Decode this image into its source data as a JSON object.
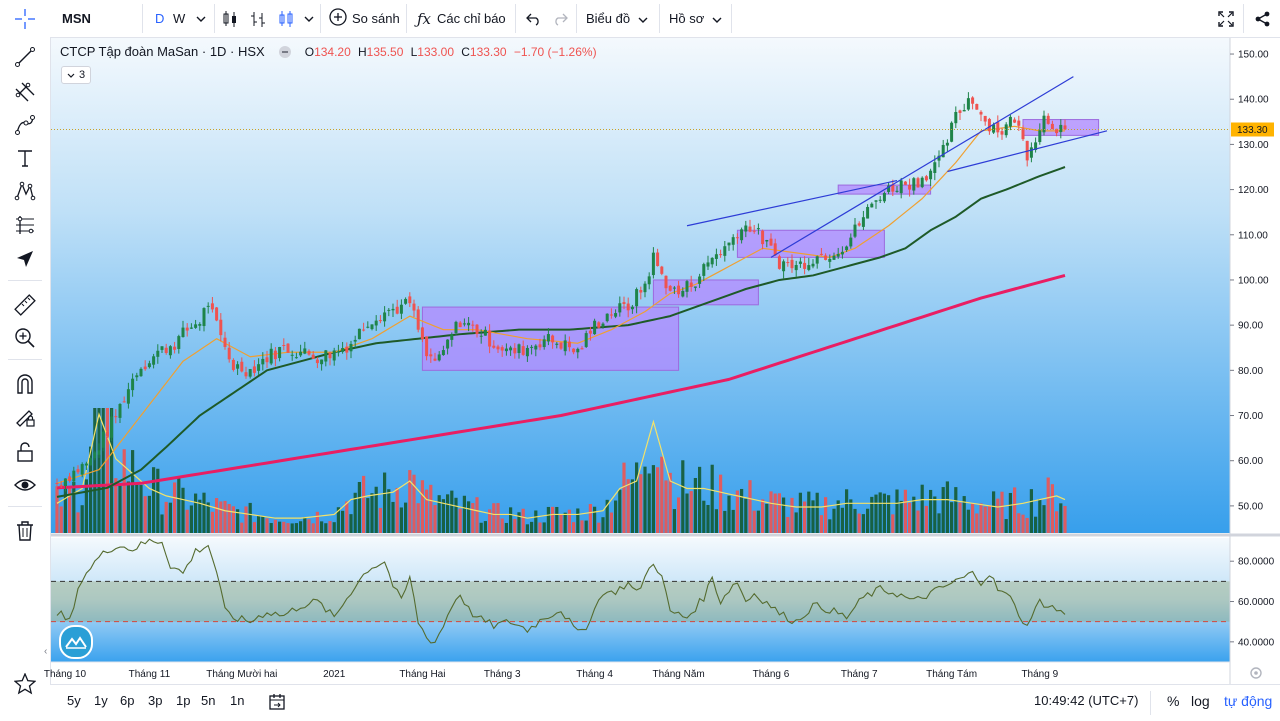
{
  "header": {
    "symbol": "MSN",
    "interval_day": "D",
    "interval_week": "W",
    "compare_label": "So sánh",
    "indicators_label": "Các chỉ báo",
    "chart_label": "Biểu đồ",
    "profile_label": "Hồ sơ"
  },
  "legend": {
    "title": "CTCP Tập đoàn MaSan · 1D · HSX",
    "o_label": "O",
    "o": "134.20",
    "h_label": "H",
    "h": "135.50",
    "l_label": "L",
    "l": "133.00",
    "c_label": "C",
    "c": "133.30",
    "change": "−1.70 (−1.26%)",
    "study_count": "3"
  },
  "bottom": {
    "ranges": [
      "5y",
      "1y",
      "6p",
      "3p",
      "1p",
      "5n",
      "1n"
    ],
    "time": "10:49:42 (UTC+7)",
    "percent_label": "%",
    "log_label": "log",
    "auto_label": "tự động"
  },
  "chart_data": {
    "type": "candlestick",
    "colors": {
      "up": "#1e8449",
      "down": "#ef5350",
      "volume_up": "#145a32",
      "volume_down": "#ef5350",
      "ma_fast": "#f0a030",
      "ma_mid": "#1e5a28",
      "ma_slow": "#e91e63",
      "rsi": "#556b2f",
      "zone": "#b388ff",
      "trendline": "#2d3cd6",
      "background_top": "#eef6fc",
      "background_bottom": "#3aa2ee"
    },
    "price_axis": {
      "ylim": [
        44,
        152
      ],
      "ticks": [
        "150.00",
        "140.00",
        "130.00",
        "120.00",
        "110.00",
        "100.00",
        "90.00",
        "80.00",
        "70.00",
        "60.00",
        "50.00"
      ],
      "last_price_label": "133.30",
      "last_price": 133.3
    },
    "rsi_axis": {
      "ylim": [
        30,
        93
      ],
      "ticks": [
        "80.0000",
        "60.0000",
        "40.0000"
      ],
      "upper_band": 70,
      "lower_band": 50
    },
    "time_axis": {
      "labels": [
        "Tháng 10",
        "Tháng 11",
        "Tháng Mười hai",
        "2021",
        "Tháng Hai",
        "Tháng 3",
        "Tháng 4",
        "Tháng Năm",
        "Tháng 6",
        "Tháng 7",
        "Tháng Tám",
        "Tháng 9"
      ],
      "label_bar_index": [
        0,
        22,
        44,
        66,
        87,
        106,
        128,
        148,
        170,
        191,
        213,
        234
      ]
    },
    "price_keypoints": [
      [
        0,
        55
      ],
      [
        8,
        60
      ],
      [
        14,
        70
      ],
      [
        19,
        80
      ],
      [
        24,
        84
      ],
      [
        28,
        86
      ],
      [
        31,
        89
      ],
      [
        34,
        91
      ],
      [
        36,
        95
      ],
      [
        39,
        87
      ],
      [
        42,
        81
      ],
      [
        46,
        80
      ],
      [
        50,
        83
      ],
      [
        54,
        85
      ],
      [
        58,
        84
      ],
      [
        62,
        83
      ],
      [
        66,
        84
      ],
      [
        70,
        86
      ],
      [
        74,
        91
      ],
      [
        78,
        93
      ],
      [
        82,
        94
      ],
      [
        84,
        95
      ],
      [
        88,
        83
      ],
      [
        91,
        82
      ],
      [
        94,
        88
      ],
      [
        96,
        91
      ],
      [
        100,
        89
      ],
      [
        104,
        86
      ],
      [
        108,
        84
      ],
      [
        112,
        85
      ],
      [
        116,
        87
      ],
      [
        120,
        86
      ],
      [
        124,
        84
      ],
      [
        128,
        90
      ],
      [
        132,
        93
      ],
      [
        136,
        94
      ],
      [
        140,
        99
      ],
      [
        142,
        105
      ],
      [
        144,
        101
      ],
      [
        146,
        98
      ],
      [
        148,
        97
      ],
      [
        152,
        100
      ],
      [
        156,
        105
      ],
      [
        160,
        108
      ],
      [
        162,
        111
      ],
      [
        165,
        112
      ],
      [
        168,
        109
      ],
      [
        172,
        104
      ],
      [
        176,
        103
      ],
      [
        180,
        105
      ],
      [
        184,
        106
      ],
      [
        188,
        108
      ],
      [
        192,
        114
      ],
      [
        196,
        119
      ],
      [
        200,
        121
      ],
      [
        205,
        122
      ],
      [
        210,
        126
      ],
      [
        214,
        136
      ],
      [
        217,
        140
      ],
      [
        219,
        139
      ],
      [
        221,
        135
      ],
      [
        225,
        133
      ],
      [
        228,
        136
      ],
      [
        231,
        128
      ],
      [
        233,
        132
      ],
      [
        235,
        136
      ],
      [
        238,
        134
      ],
      [
        240,
        133.3
      ]
    ],
    "ma_fast_keypoints": [
      [
        0,
        55
      ],
      [
        10,
        58
      ],
      [
        20,
        70
      ],
      [
        30,
        82
      ],
      [
        38,
        87
      ],
      [
        46,
        83
      ],
      [
        55,
        84
      ],
      [
        66,
        84
      ],
      [
        75,
        87
      ],
      [
        84,
        92
      ],
      [
        92,
        89
      ],
      [
        100,
        89
      ],
      [
        112,
        87
      ],
      [
        124,
        86
      ],
      [
        132,
        89
      ],
      [
        140,
        93
      ],
      [
        146,
        97
      ],
      [
        152,
        99
      ],
      [
        160,
        103
      ],
      [
        168,
        107
      ],
      [
        176,
        106
      ],
      [
        184,
        105
      ],
      [
        190,
        107
      ],
      [
        198,
        112
      ],
      [
        206,
        118
      ],
      [
        214,
        126
      ],
      [
        220,
        133
      ],
      [
        228,
        134
      ],
      [
        234,
        133
      ],
      [
        240,
        133
      ]
    ],
    "ma_mid_keypoints": [
      [
        0,
        52
      ],
      [
        12,
        54
      ],
      [
        20,
        58
      ],
      [
        26,
        63
      ],
      [
        34,
        70
      ],
      [
        42,
        75
      ],
      [
        50,
        80
      ],
      [
        58,
        82
      ],
      [
        66,
        84
      ],
      [
        76,
        86
      ],
      [
        86,
        87
      ],
      [
        96,
        88
      ],
      [
        110,
        89
      ],
      [
        122,
        89
      ],
      [
        136,
        90
      ],
      [
        146,
        92
      ],
      [
        152,
        94
      ],
      [
        158,
        96
      ],
      [
        164,
        98
      ],
      [
        172,
        100
      ],
      [
        180,
        101
      ],
      [
        188,
        103
      ],
      [
        196,
        105
      ],
      [
        202,
        107
      ],
      [
        208,
        111
      ],
      [
        214,
        114
      ],
      [
        220,
        118
      ],
      [
        226,
        120
      ],
      [
        234,
        123
      ],
      [
        240,
        125
      ]
    ],
    "ma_slow_keypoints": [
      [
        0,
        54
      ],
      [
        20,
        55
      ],
      [
        40,
        58
      ],
      [
        60,
        61
      ],
      [
        80,
        64
      ],
      [
        100,
        67
      ],
      [
        120,
        70
      ],
      [
        140,
        74
      ],
      [
        160,
        78
      ],
      [
        180,
        84
      ],
      [
        200,
        90
      ],
      [
        220,
        96
      ],
      [
        240,
        101
      ]
    ],
    "rsi_keypoints": [
      [
        0,
        55
      ],
      [
        3,
        50
      ],
      [
        6,
        72
      ],
      [
        10,
        82
      ],
      [
        14,
        88
      ],
      [
        18,
        86
      ],
      [
        22,
        90
      ],
      [
        25,
        90
      ],
      [
        27,
        78
      ],
      [
        30,
        74
      ],
      [
        33,
        85
      ],
      [
        36,
        88
      ],
      [
        38,
        75
      ],
      [
        40,
        55
      ],
      [
        42,
        52
      ],
      [
        46,
        50
      ],
      [
        50,
        55
      ],
      [
        54,
        53
      ],
      [
        58,
        58
      ],
      [
        62,
        60
      ],
      [
        66,
        52
      ],
      [
        70,
        65
      ],
      [
        74,
        76
      ],
      [
        78,
        80
      ],
      [
        80,
        68
      ],
      [
        82,
        60
      ],
      [
        84,
        72
      ],
      [
        86,
        50
      ],
      [
        88,
        42
      ],
      [
        90,
        40
      ],
      [
        92,
        48
      ],
      [
        94,
        58
      ],
      [
        96,
        64
      ],
      [
        98,
        56
      ],
      [
        100,
        52
      ],
      [
        104,
        48
      ],
      [
        108,
        50
      ],
      [
        112,
        46
      ],
      [
        116,
        52
      ],
      [
        120,
        56
      ],
      [
        124,
        44
      ],
      [
        126,
        48
      ],
      [
        128,
        56
      ],
      [
        130,
        65
      ],
      [
        132,
        64
      ],
      [
        136,
        69
      ],
      [
        138,
        64
      ],
      [
        140,
        72
      ],
      [
        142,
        80
      ],
      [
        144,
        72
      ],
      [
        146,
        55
      ],
      [
        150,
        52
      ],
      [
        154,
        62
      ],
      [
        156,
        72
      ],
      [
        158,
        60
      ],
      [
        160,
        66
      ],
      [
        162,
        70
      ],
      [
        164,
        60
      ],
      [
        166,
        64
      ],
      [
        170,
        58
      ],
      [
        172,
        54
      ],
      [
        176,
        50
      ],
      [
        180,
        58
      ],
      [
        184,
        56
      ],
      [
        188,
        52
      ],
      [
        192,
        62
      ],
      [
        196,
        66
      ],
      [
        200,
        64
      ],
      [
        204,
        60
      ],
      [
        208,
        64
      ],
      [
        212,
        68
      ],
      [
        216,
        72
      ],
      [
        218,
        74
      ],
      [
        220,
        70
      ],
      [
        222,
        74
      ],
      [
        224,
        66
      ],
      [
        228,
        60
      ],
      [
        230,
        48
      ],
      [
        232,
        52
      ],
      [
        234,
        60
      ],
      [
        236,
        58
      ],
      [
        238,
        56
      ],
      [
        240,
        54
      ]
    ],
    "volume_keypoints": [
      [
        0,
        8
      ],
      [
        6,
        12
      ],
      [
        10,
        32
      ],
      [
        14,
        20
      ],
      [
        18,
        16
      ],
      [
        22,
        12
      ],
      [
        26,
        10
      ],
      [
        30,
        9
      ],
      [
        34,
        8
      ],
      [
        40,
        6
      ],
      [
        46,
        5
      ],
      [
        52,
        4
      ],
      [
        58,
        4
      ],
      [
        66,
        5
      ],
      [
        70,
        9
      ],
      [
        74,
        10
      ],
      [
        80,
        11
      ],
      [
        84,
        14
      ],
      [
        88,
        9
      ],
      [
        92,
        8
      ],
      [
        96,
        7
      ],
      [
        100,
        6
      ],
      [
        104,
        5
      ],
      [
        108,
        5
      ],
      [
        112,
        4
      ],
      [
        118,
        5
      ],
      [
        124,
        5
      ],
      [
        130,
        6
      ],
      [
        134,
        12
      ],
      [
        138,
        14
      ],
      [
        142,
        30
      ],
      [
        144,
        22
      ],
      [
        146,
        14
      ],
      [
        150,
        12
      ],
      [
        154,
        12
      ],
      [
        158,
        11
      ],
      [
        162,
        10
      ],
      [
        166,
        9
      ],
      [
        170,
        8
      ],
      [
        176,
        7
      ],
      [
        182,
        7
      ],
      [
        188,
        8
      ],
      [
        194,
        8
      ],
      [
        200,
        8
      ],
      [
        206,
        9
      ],
      [
        212,
        9
      ],
      [
        218,
        8
      ],
      [
        224,
        7
      ],
      [
        230,
        8
      ],
      [
        234,
        9
      ],
      [
        238,
        10
      ],
      [
        240,
        9
      ]
    ],
    "volume_max_value": 32,
    "zones": [
      {
        "x0": 87,
        "x1": 148,
        "y0": 80,
        "y1": 94
      },
      {
        "x0": 142,
        "x1": 167,
        "y0": 94.5,
        "y1": 100
      },
      {
        "x0": 162,
        "x1": 197,
        "y0": 105,
        "y1": 111
      },
      {
        "x0": 186,
        "x1": 208,
        "y0": 119,
        "y1": 121
      },
      {
        "x0": 230,
        "x1": 248,
        "y0": 132,
        "y1": 135.5
      }
    ],
    "trendlines": [
      {
        "x0": 150,
        "x1": 200,
        "y0": 112,
        "y1": 122
      },
      {
        "x0": 170,
        "x1": 242,
        "y0": 105,
        "y1": 145
      },
      {
        "x0": 212,
        "x1": 250,
        "y0": 124,
        "y1": 133
      }
    ]
  }
}
